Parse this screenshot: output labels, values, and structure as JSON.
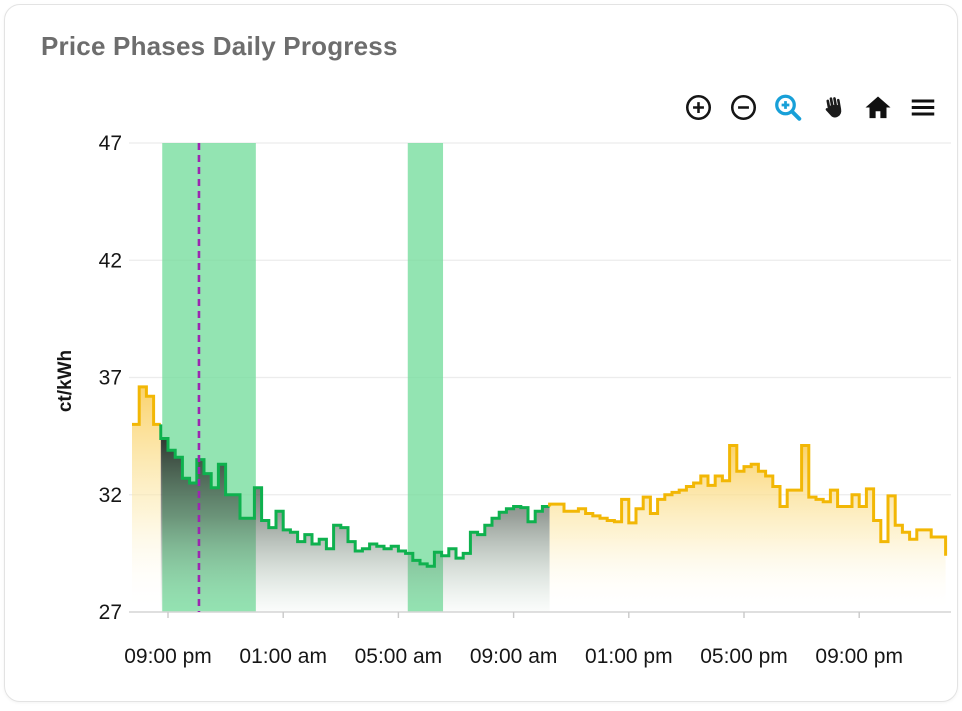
{
  "card": {
    "title": "Price Phases Daily Progress"
  },
  "toolbar": {
    "buttons": [
      {
        "name": "Zoom in",
        "icon": "circle-plus-icon"
      },
      {
        "name": "Zoom out",
        "icon": "circle-minus-icon"
      },
      {
        "name": "Box zoom",
        "icon": "magnifier-plus-icon",
        "active": true,
        "active_color": "#18a0d8"
      },
      {
        "name": "Pan",
        "icon": "hand-icon"
      },
      {
        "name": "Reset view",
        "icon": "home-icon"
      },
      {
        "name": "Menu",
        "icon": "hamburger-icon"
      }
    ]
  },
  "chart_data": {
    "type": "step-area",
    "title": "Price Phases Daily Progress",
    "xlabel": "",
    "ylabel": "ct/kWh",
    "ylim": [
      27,
      47
    ],
    "y_ticks": [
      47,
      42,
      37,
      32,
      27
    ],
    "x_tick_labels": [
      "09:00 pm",
      "01:00 am",
      "05:00 am",
      "09:00 am",
      "01:00 pm",
      "05:00 pm",
      "09:00 pm"
    ],
    "x_tick_indices": [
      5,
      21,
      37,
      53,
      69,
      85,
      101
    ],
    "start_time": "19:45",
    "step_minutes": 15,
    "grid": true,
    "legend": "none",
    "values": [
      35.0,
      36.6,
      36.2,
      35.0,
      34.4,
      33.9,
      33.6,
      32.7,
      32.5,
      33.5,
      32.9,
      32.3,
      33.3,
      32.0,
      32.0,
      31.0,
      31.0,
      32.3,
      30.9,
      30.6,
      31.3,
      30.5,
      30.4,
      30.0,
      30.3,
      29.9,
      30.1,
      29.7,
      30.7,
      30.6,
      30.0,
      29.6,
      29.7,
      29.9,
      29.8,
      29.7,
      29.8,
      29.6,
      29.5,
      29.2,
      29.05,
      28.95,
      29.55,
      29.4,
      29.7,
      29.3,
      29.5,
      30.4,
      30.3,
      30.7,
      31.0,
      31.25,
      31.4,
      31.5,
      31.45,
      30.85,
      31.3,
      31.5,
      31.6,
      31.6,
      31.3,
      31.3,
      31.4,
      31.2,
      31.1,
      31.0,
      30.9,
      30.85,
      31.8,
      30.8,
      31.4,
      31.9,
      31.2,
      31.8,
      32.0,
      32.1,
      32.2,
      32.35,
      32.5,
      32.8,
      32.4,
      32.8,
      32.6,
      34.1,
      33.0,
      33.2,
      33.3,
      33.0,
      32.8,
      32.35,
      31.5,
      32.2,
      32.2,
      34.1,
      31.9,
      31.8,
      31.7,
      32.2,
      31.5,
      31.5,
      32.0,
      31.5,
      32.25,
      30.9,
      30.0,
      31.95,
      30.7,
      30.4,
      30.1,
      30.5,
      30.5,
      30.2,
      30.2
    ],
    "end_value": 29.4,
    "phases": [
      {
        "name": "normal-price-phase",
        "color": "#f2b705",
        "from_index": 0,
        "to_index": 4,
        "fill_stops": [
          [
            0,
            "rgba(250,208,101,0.95)"
          ],
          [
            0.55,
            "rgba(252,235,180,0.55)"
          ],
          [
            1,
            "rgba(255,255,255,0)"
          ]
        ]
      },
      {
        "name": "low-price-phase",
        "color": "#0eb14e",
        "from_index": 4,
        "to_index": 58,
        "fill_stops": [
          [
            0,
            "rgba(40,44,40,0.93)"
          ],
          [
            0.45,
            "rgba(78,90,80,0.58)"
          ],
          [
            1,
            "rgba(150,185,160,0.04)"
          ]
        ]
      },
      {
        "name": "normal-price-phase",
        "color": "#f2b705",
        "from_index": 58,
        "to_index": 113,
        "fill_stops": [
          [
            0,
            "rgba(250,208,101,0.95)"
          ],
          [
            0.55,
            "rgba(252,235,180,0.55)"
          ],
          [
            1,
            "rgba(255,255,255,0)"
          ]
        ]
      }
    ],
    "highlight_bands": [
      {
        "name": "cheap-window",
        "from_index": 4.2,
        "to_index": 17.2,
        "color": "rgba(116,221,156,0.78)"
      },
      {
        "name": "cheap-window",
        "from_index": 38.3,
        "to_index": 43.2,
        "color": "rgba(116,221,156,0.78)"
      }
    ],
    "current_time_line": {
      "index": 9.3,
      "color": "#9c27b0",
      "style": "dashed"
    },
    "colors": {
      "grid": "#ececec",
      "axis": "#d6d6d6",
      "tick_text": "#161616",
      "title_text": "#6d6d6d"
    }
  }
}
